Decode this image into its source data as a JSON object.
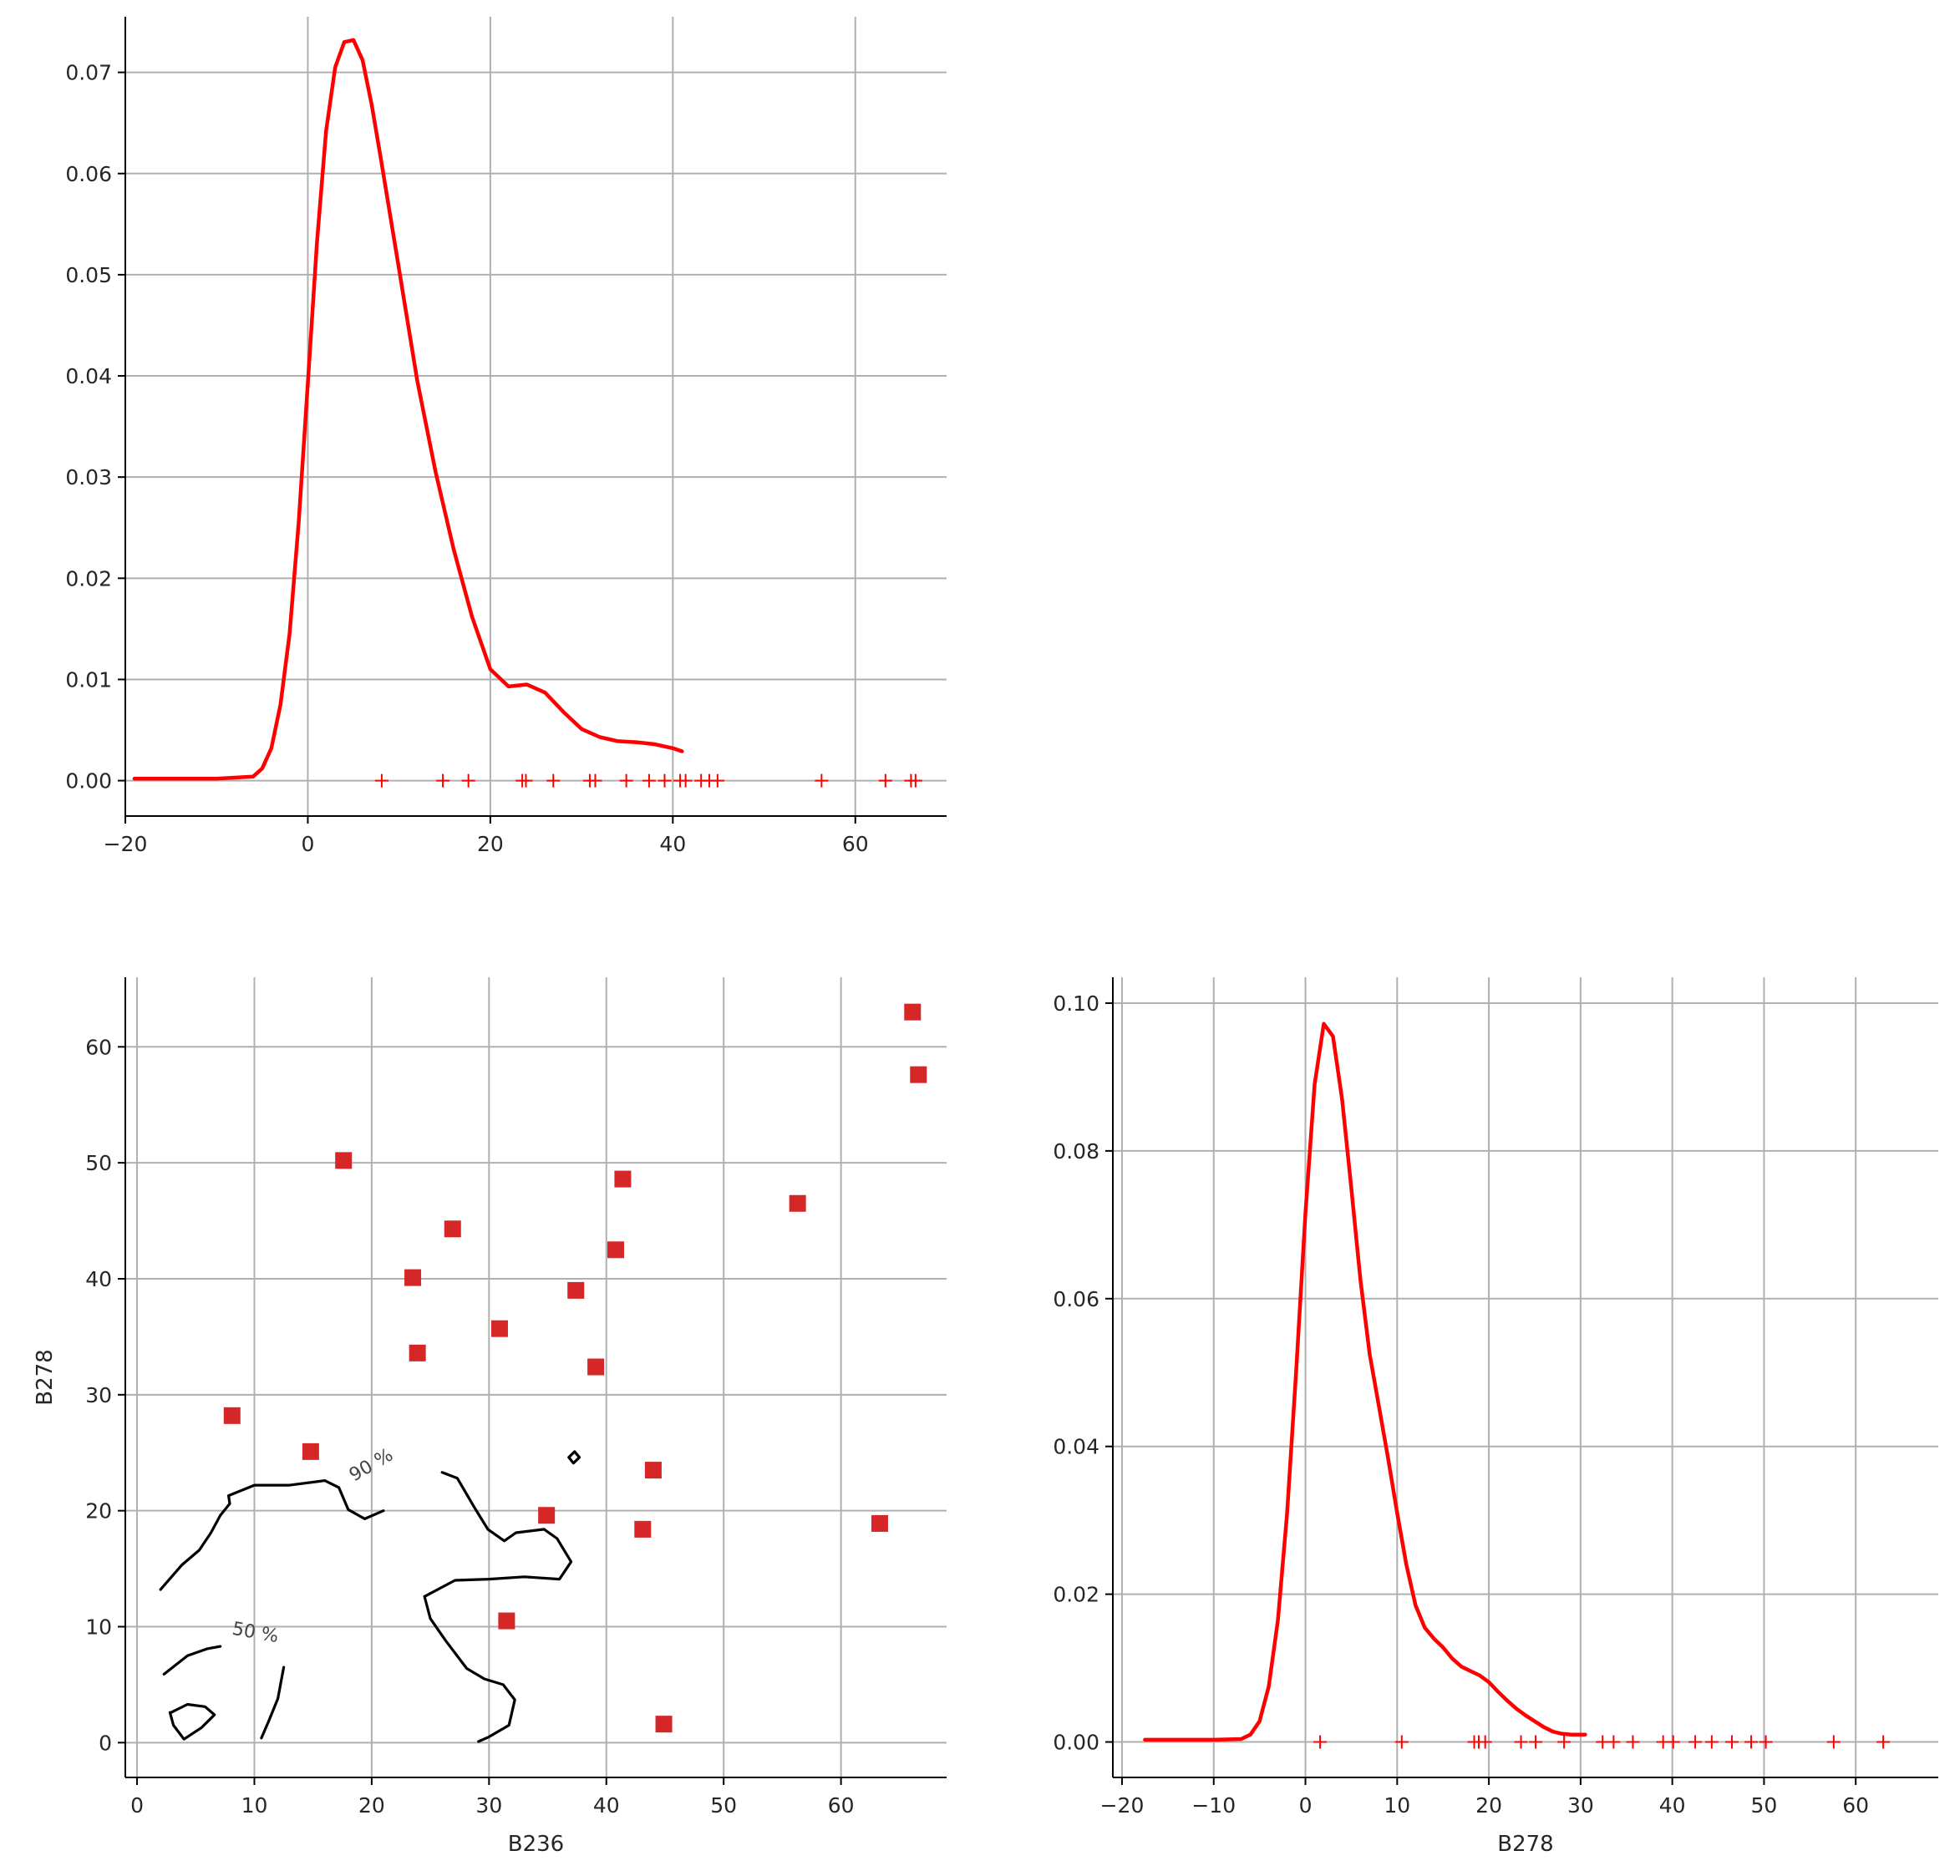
{
  "figure": {
    "background": "#ffffff"
  },
  "chart_data": [
    {
      "id": "kde_b236",
      "type": "line",
      "title": "",
      "xlabel": "",
      "ylabel": "",
      "xlim": [
        -20,
        70
      ],
      "ylim": [
        -0.0035,
        0.0755
      ],
      "xticks": [
        -20,
        0,
        20,
        40,
        60
      ],
      "xtick_labels": [
        "−20",
        "0",
        "20",
        "40",
        "60"
      ],
      "yticks": [
        0.0,
        0.01,
        0.02,
        0.03,
        0.04,
        0.05,
        0.06,
        0.07
      ],
      "ytick_labels": [
        "0.00",
        "0.01",
        "0.02",
        "0.03",
        "0.04",
        "0.05",
        "0.06",
        "0.07"
      ],
      "grid": true,
      "color": "#ff0000",
      "series": [
        {
          "x": [
            -19,
            -10,
            -6,
            -5,
            -4,
            -3,
            -2,
            -1,
            0,
            1,
            2,
            3,
            4,
            5,
            6,
            7,
            8,
            10,
            12,
            14,
            16,
            18,
            20,
            22,
            24,
            26,
            28,
            30,
            32,
            34,
            36,
            38,
            40,
            41
          ],
          "y": [
            0.0002,
            0.0002,
            0.0004,
            0.0012,
            0.0032,
            0.0075,
            0.0145,
            0.0255,
            0.0392,
            0.0532,
            0.0642,
            0.0705,
            0.073,
            0.0732,
            0.0712,
            0.0668,
            0.0615,
            0.0505,
            0.0395,
            0.0305,
            0.0228,
            0.0162,
            0.011,
            0.0093,
            0.0095,
            0.0087,
            0.0068,
            0.0051,
            0.0043,
            0.0039,
            0.0038,
            0.0036,
            0.0032,
            0.0029
          ]
        }
      ],
      "rug": [
        8.1,
        14.8,
        17.6,
        23.5,
        23.9,
        26.9,
        30.9,
        31.5,
        34.9,
        37.4,
        39.1,
        40.8,
        41.4,
        43.1,
        44.0,
        44.9,
        56.3,
        63.3,
        66.1,
        66.6
      ]
    },
    {
      "id": "scatter_b236_b278",
      "type": "scatter",
      "title": "",
      "xlabel": "B236",
      "ylabel": "B278",
      "xlim": [
        -1,
        69
      ],
      "ylim": [
        -3,
        66
      ],
      "xticks": [
        0,
        10,
        20,
        30,
        40,
        50,
        60
      ],
      "xtick_labels": [
        "0",
        "10",
        "20",
        "30",
        "40",
        "50",
        "60"
      ],
      "yticks": [
        0,
        10,
        20,
        30,
        40,
        50,
        60
      ],
      "ytick_labels": [
        "0",
        "10",
        "20",
        "30",
        "40",
        "50",
        "60"
      ],
      "grid": true,
      "marker_color": "#d62728",
      "points": [
        {
          "x": 66.1,
          "y": 63.0
        },
        {
          "x": 66.6,
          "y": 57.6
        },
        {
          "x": 17.6,
          "y": 50.2
        },
        {
          "x": 41.4,
          "y": 48.6
        },
        {
          "x": 56.3,
          "y": 46.5
        },
        {
          "x": 26.9,
          "y": 44.3
        },
        {
          "x": 40.8,
          "y": 42.5
        },
        {
          "x": 23.5,
          "y": 40.1
        },
        {
          "x": 37.4,
          "y": 39.0
        },
        {
          "x": 30.9,
          "y": 35.7
        },
        {
          "x": 23.9,
          "y": 33.6
        },
        {
          "x": 39.1,
          "y": 32.4
        },
        {
          "x": 8.1,
          "y": 28.2
        },
        {
          "x": 14.8,
          "y": 25.1
        },
        {
          "x": 44.0,
          "y": 23.5
        },
        {
          "x": 34.9,
          "y": 19.6
        },
        {
          "x": 63.3,
          "y": 18.9
        },
        {
          "x": 43.1,
          "y": 18.4
        },
        {
          "x": 31.5,
          "y": 10.5
        },
        {
          "x": 44.9,
          "y": 1.6
        }
      ],
      "contours": {
        "color": "#000000",
        "levels": [
          {
            "label": "90 %",
            "label_at": [
              20.2,
              23.5
            ],
            "label_angle": -30,
            "paths": [
              [
                [
                  2.0,
                  13.2
                ],
                [
                  3.8,
                  15.3
                ],
                [
                  5.3,
                  16.6
                ],
                [
                  6.3,
                  18.1
                ],
                [
                  7.1,
                  19.6
                ],
                [
                  7.9,
                  20.6
                ],
                [
                  7.8,
                  21.3
                ],
                [
                  10.0,
                  22.2
                ],
                [
                  13.0,
                  22.2
                ],
                [
                  16.0,
                  22.6
                ],
                [
                  17.2,
                  22.0
                ],
                [
                  18.0,
                  20.1
                ],
                [
                  19.4,
                  19.3
                ],
                [
                  21.0,
                  20.0
                ]
              ],
              [
                [
                  26.0,
                  23.3
                ],
                [
                  27.3,
                  22.8
                ],
                [
                  28.8,
                  20.2
                ],
                [
                  29.9,
                  18.4
                ],
                [
                  31.3,
                  17.4
                ],
                [
                  32.3,
                  18.1
                ],
                [
                  34.7,
                  18.4
                ],
                [
                  35.8,
                  17.6
                ],
                [
                  37.0,
                  15.6
                ],
                [
                  36.0,
                  14.1
                ],
                [
                  33.0,
                  14.3
                ],
                [
                  30.0,
                  14.1
                ],
                [
                  27.1,
                  14.0
                ],
                [
                  24.5,
                  12.6
                ],
                [
                  25.0,
                  10.7
                ],
                [
                  26.3,
                  8.8
                ],
                [
                  28.1,
                  6.4
                ],
                [
                  29.6,
                  5.5
                ],
                [
                  31.2,
                  5.0
                ],
                [
                  32.2,
                  3.7
                ],
                [
                  31.7,
                  1.5
                ],
                [
                  30.0,
                  0.5
                ],
                [
                  29.1,
                  0.1
                ]
              ],
              [
                [
                  36.8,
                  24.6
                ],
                [
                  37.3,
                  25.1
                ],
                [
                  37.7,
                  24.6
                ],
                [
                  37.2,
                  24.1
                ],
                [
                  36.8,
                  24.6
                ]
              ]
            ]
          },
          {
            "label": "50 %",
            "label_at": [
              10.0,
              9.0
            ],
            "label_angle": 10,
            "paths": [
              [
                [
                  2.3,
                  5.9
                ],
                [
                  4.3,
                  7.5
                ],
                [
                  6.0,
                  8.1
                ],
                [
                  7.1,
                  8.3
                ]
              ],
              [
                [
                  12.5,
                  6.5
                ],
                [
                  12.0,
                  3.8
                ],
                [
                  11.2,
                  1.8
                ],
                [
                  10.6,
                  0.4
                ]
              ],
              [
                [
                  2.9,
                  2.6
                ],
                [
                  4.3,
                  3.3
                ],
                [
                  5.8,
                  3.1
                ],
                [
                  6.6,
                  2.4
                ],
                [
                  5.5,
                  1.3
                ],
                [
                  4.0,
                  0.3
                ],
                [
                  3.1,
                  1.5
                ],
                [
                  2.8,
                  2.6
                ]
              ]
            ]
          }
        ]
      }
    },
    {
      "id": "kde_b278",
      "type": "line",
      "title": "",
      "xlabel": "B278",
      "ylabel": "",
      "xlim": [
        -21,
        69
      ],
      "ylim": [
        -0.0048,
        0.1035
      ],
      "xticks": [
        -20,
        -10,
        0,
        10,
        20,
        30,
        40,
        50,
        60
      ],
      "xtick_labels": [
        "−20",
        "−10",
        "0",
        "10",
        "20",
        "30",
        "40",
        "50",
        "60"
      ],
      "yticks": [
        0.0,
        0.02,
        0.04,
        0.06,
        0.08,
        0.1
      ],
      "ytick_labels": [
        "0.00",
        "0.02",
        "0.04",
        "0.06",
        "0.08",
        "0.10"
      ],
      "grid": true,
      "color": "#ff0000",
      "series": [
        {
          "x": [
            -17.5,
            -10,
            -7,
            -6,
            -5,
            -4,
            -3,
            -2,
            -1,
            0,
            1,
            2,
            3,
            4,
            5,
            6,
            7,
            8,
            9,
            10,
            11,
            12,
            13,
            14,
            15,
            16,
            17,
            18,
            19,
            20,
            21,
            22,
            23,
            24,
            25,
            26,
            27,
            28,
            29,
            30.5
          ],
          "y": [
            0.0003,
            0.0003,
            0.0004,
            0.001,
            0.0028,
            0.0075,
            0.0165,
            0.031,
            0.0505,
            0.0715,
            0.089,
            0.0972,
            0.0955,
            0.087,
            0.075,
            0.0625,
            0.0525,
            0.0455,
            0.0385,
            0.031,
            0.024,
            0.0185,
            0.0155,
            0.014,
            0.0128,
            0.0113,
            0.0102,
            0.0096,
            0.009,
            0.0081,
            0.0068,
            0.0056,
            0.0045,
            0.0036,
            0.0028,
            0.002,
            0.0014,
            0.0011,
            0.001,
            0.001
          ]
        }
      ],
      "rug": [
        1.6,
        10.5,
        18.4,
        18.9,
        19.6,
        23.5,
        25.1,
        28.2,
        32.4,
        33.6,
        35.7,
        39.0,
        40.1,
        42.5,
        44.3,
        46.5,
        48.6,
        50.2,
        57.6,
        63.0
      ]
    }
  ]
}
